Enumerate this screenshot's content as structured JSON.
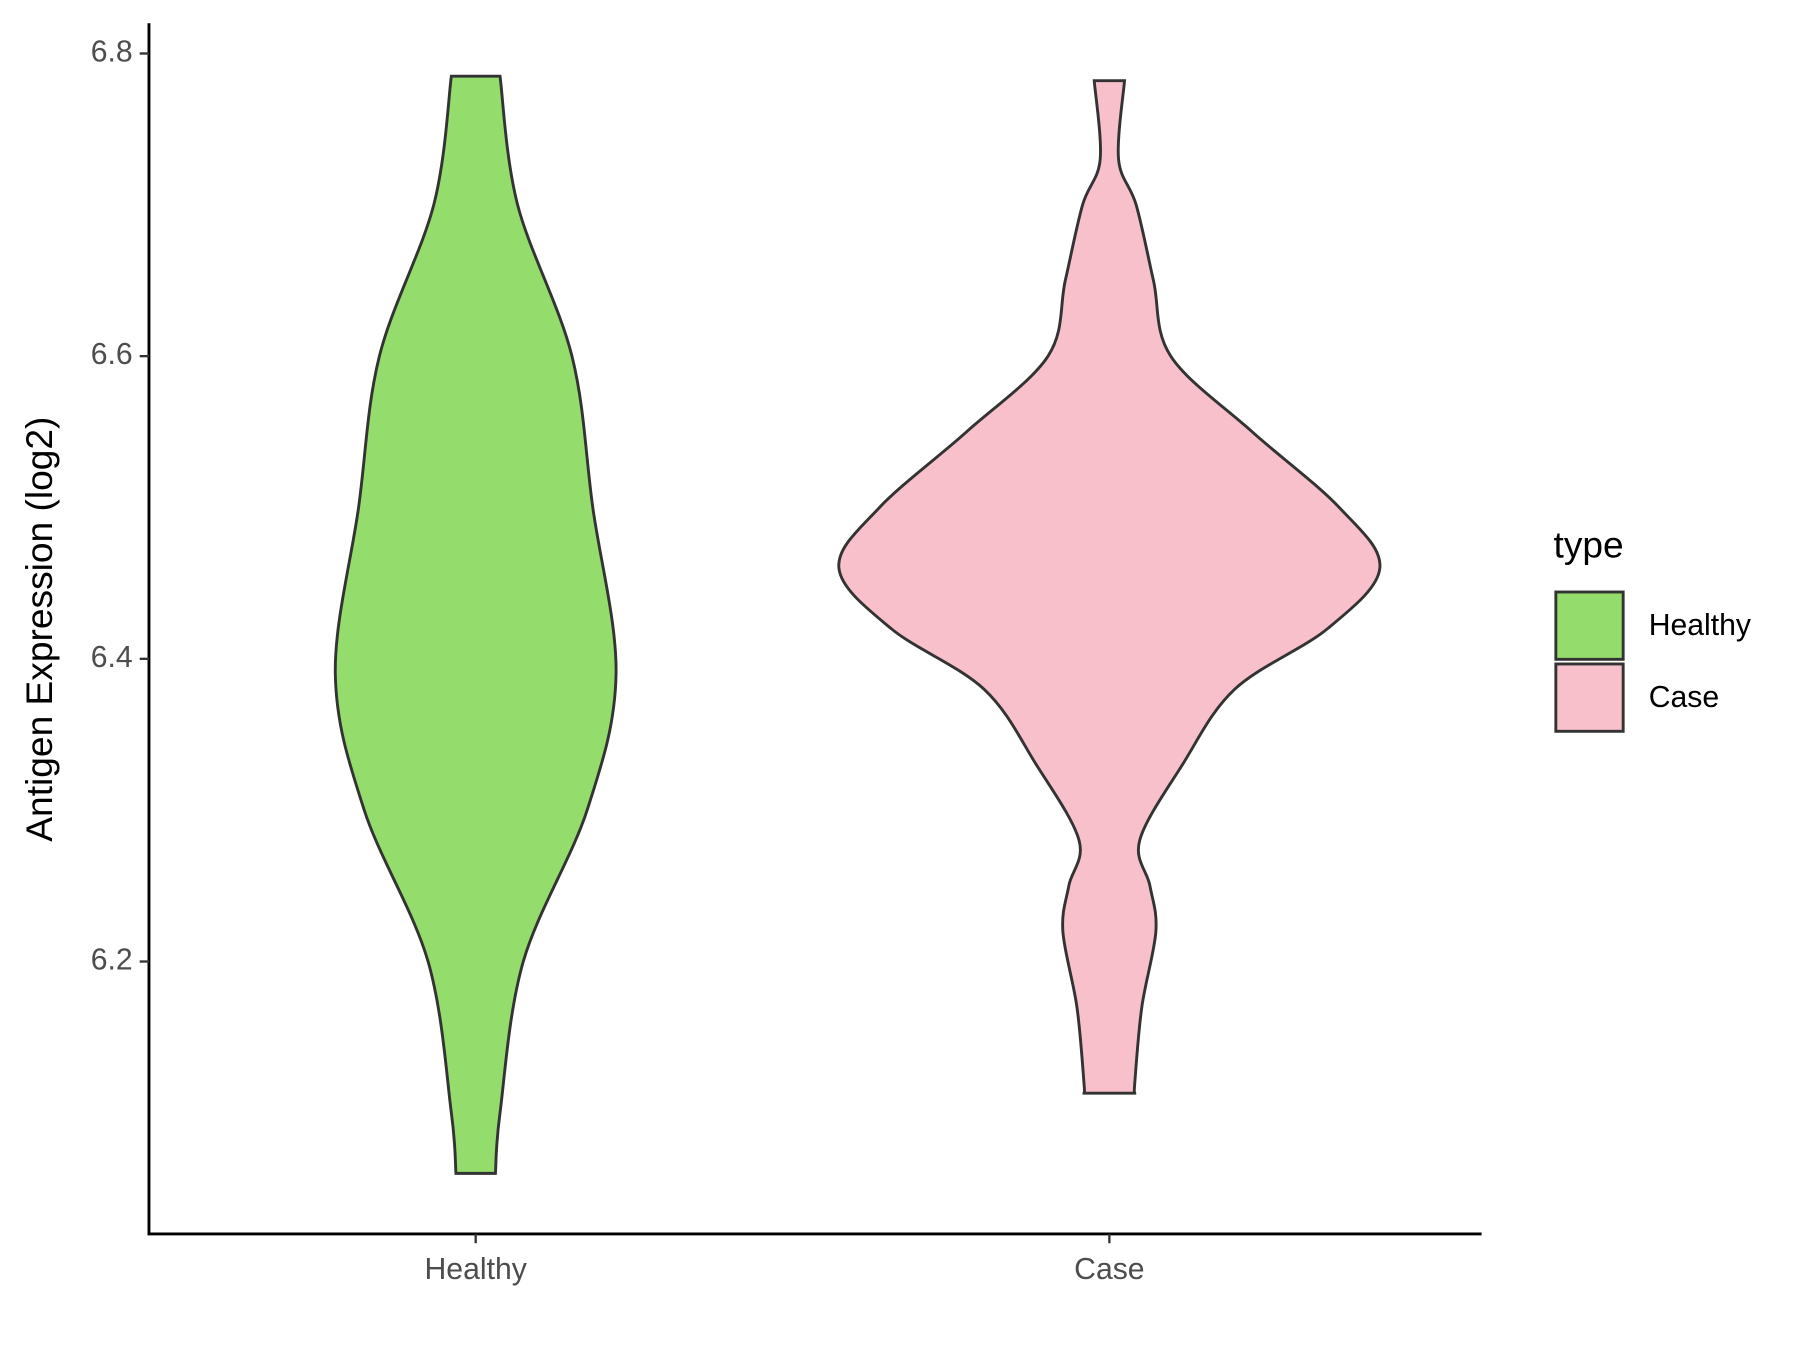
{
  "chart_data": {
    "type": "violin",
    "y_label": "Antigen Expression (log2)",
    "categories": [
      "Healthy",
      "Case"
    ],
    "ylim": [
      6.02,
      6.82
    ],
    "yticks": [
      6.2,
      6.4,
      6.6,
      6.8
    ],
    "legend_title": "type",
    "legend_position": "right",
    "series": [
      {
        "name": "Healthy",
        "color": "#94dc6c",
        "y": [
          6.06,
          6.1,
          6.2,
          6.3,
          6.39,
          6.5,
          6.6,
          6.7,
          6.785
        ],
        "width": [
          0.073,
          0.09,
          0.176,
          0.412,
          0.519,
          0.433,
          0.356,
          0.155,
          0.09
        ]
      },
      {
        "name": "Case",
        "color": "#f8c0cb",
        "y": [
          6.113,
          6.12,
          6.17,
          6.22,
          6.25,
          6.28,
          6.33,
          6.38,
          6.42,
          6.46,
          6.5,
          6.55,
          6.6,
          6.65,
          6.7,
          6.73,
          6.782
        ],
        "width": [
          0.094,
          0.094,
          0.12,
          0.172,
          0.15,
          0.112,
          0.27,
          0.464,
          0.807,
          1.0,
          0.85,
          0.528,
          0.227,
          0.163,
          0.099,
          0.034,
          0.056
        ]
      }
    ]
  }
}
